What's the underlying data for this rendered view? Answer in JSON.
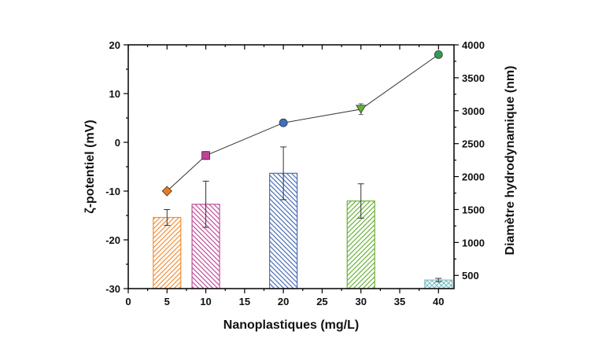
{
  "chart_data": {
    "type": "bar",
    "title": "",
    "xlabel": "Nanoplastiques (mg/L)",
    "ylabel_left": "ζ-potentiel (mV)",
    "ylabel_right": "Diamètre hydrodynamique (nm)",
    "xlim": [
      0,
      42
    ],
    "xticks": [
      0,
      5,
      10,
      15,
      20,
      25,
      30,
      35,
      40
    ],
    "ylim_left": [
      -30,
      20
    ],
    "yticks_left": [
      -30,
      -20,
      -10,
      0,
      10,
      20
    ],
    "ylim_right": [
      300,
      4000
    ],
    "yticks_right": [
      500,
      1000,
      1500,
      2000,
      2500,
      3000,
      3500,
      4000
    ],
    "grid": false,
    "series": [
      {
        "kind": "bar",
        "axis": "right",
        "values": [
          {
            "x": 5,
            "y": 1380,
            "err": 120,
            "color": "#f0913a",
            "hatch": "forward"
          },
          {
            "x": 10,
            "y": 1580,
            "err": 350,
            "color": "#c0509a",
            "hatch": "backward"
          },
          {
            "x": 20,
            "y": 2050,
            "err": 400,
            "color": "#4a6fb5",
            "hatch": "backward"
          },
          {
            "x": 30,
            "y": 1630,
            "err": 260,
            "color": "#6bb23a",
            "hatch": "forward"
          },
          {
            "x": 40,
            "y": 430,
            "err": 25,
            "color": "#7fbfc4",
            "hatch": "cross"
          }
        ]
      },
      {
        "kind": "line",
        "axis": "left",
        "values": [
          {
            "x": 5,
            "y": -10,
            "err": 0.4,
            "color": "#ec7a1c",
            "marker": "diamond"
          },
          {
            "x": 10,
            "y": -2.7,
            "err": 0.8,
            "color": "#c0409a",
            "marker": "square"
          },
          {
            "x": 20,
            "y": 4,
            "err": 0.5,
            "color": "#3f6fc4",
            "marker": "circle"
          },
          {
            "x": 30,
            "y": 6.8,
            "err": 1.1,
            "color": "#5cb82a",
            "marker": "triangle-down"
          },
          {
            "x": 40,
            "y": 18,
            "err": 0.5,
            "color": "#2f9e54",
            "marker": "circle"
          }
        ]
      }
    ]
  }
}
